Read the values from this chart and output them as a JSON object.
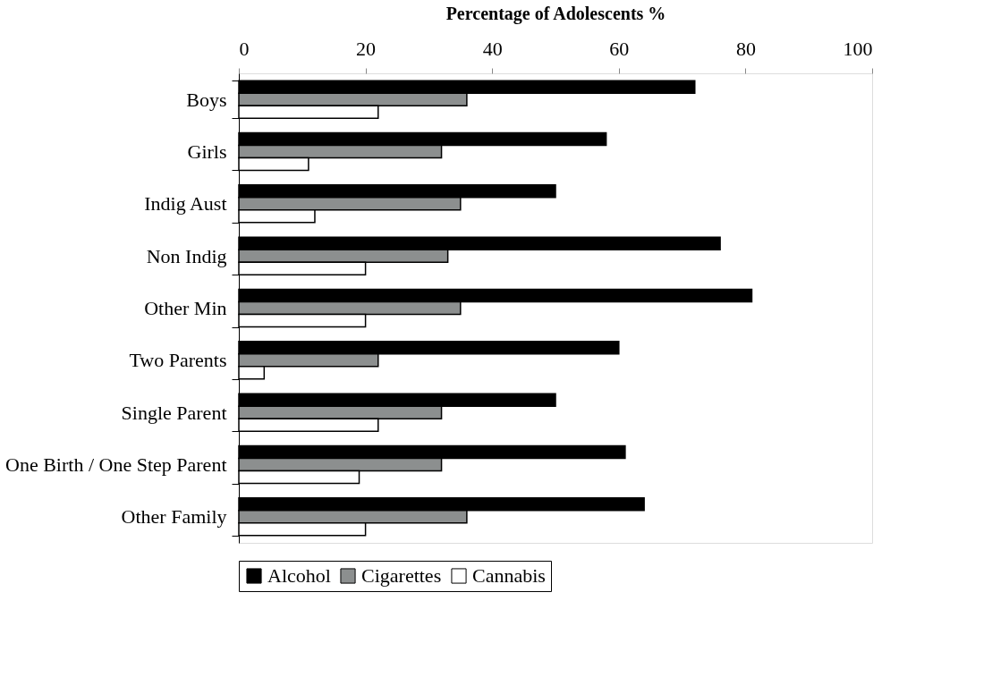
{
  "chart_data": {
    "type": "bar",
    "orientation": "horizontal",
    "xlabel": "Percentage of Adolescents %",
    "categories": [
      "Boys",
      "Girls",
      "Indig Aust",
      "Non Indig",
      "Other Min",
      "Two Parents",
      "Single Parent",
      "One Birth / One Step Parent",
      "Other Family"
    ],
    "series": [
      {
        "name": "Alcohol",
        "color": "#000000",
        "values": [
          72,
          58,
          50,
          76,
          81,
          60,
          50,
          61,
          64
        ]
      },
      {
        "name": "Cigarettes",
        "color": "#8c8f8f",
        "values": [
          36,
          32,
          35,
          33,
          35,
          22,
          32,
          32,
          36
        ]
      },
      {
        "name": "Cannabis",
        "color": "#ffffff",
        "values": [
          22,
          11,
          12,
          20,
          20,
          4,
          22,
          19,
          20
        ]
      }
    ],
    "xlim": [
      0,
      100
    ],
    "xticks": [
      0,
      20,
      40,
      60,
      80,
      100
    ],
    "grid": false,
    "legend": "bottom"
  }
}
